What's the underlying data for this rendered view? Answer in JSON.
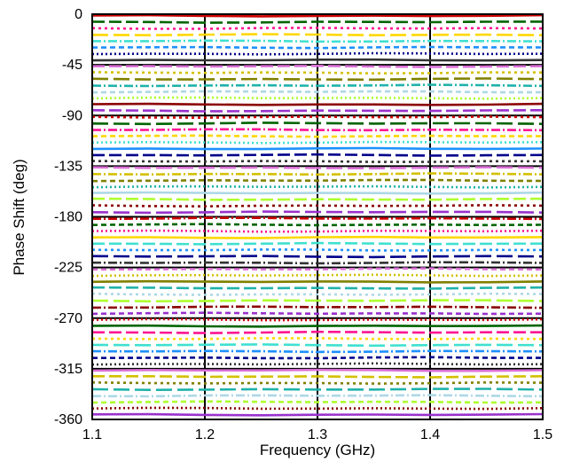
{
  "chart_data": {
    "type": "line",
    "title": "",
    "xlabel": "Frequency (GHz)",
    "ylabel": "Phase Shift (deg)",
    "xlim": [
      1.1,
      1.5
    ],
    "ylim": [
      -360,
      0
    ],
    "x_ticks": [
      1.1,
      1.2,
      1.3,
      1.4,
      1.5
    ],
    "y_ticks": [
      0,
      -45,
      -90,
      -135,
      -180,
      -225,
      -270,
      -315,
      -360
    ],
    "x_tick_labels": [
      "1.1",
      "1.2",
      "1.3",
      "1.4",
      "1.5"
    ],
    "y_tick_labels": [
      "0",
      "-45",
      "-90",
      "-135",
      "-180",
      "-225",
      "-270",
      "-315",
      "-360"
    ],
    "grid": true,
    "legend": "none",
    "x": [
      1.1,
      1.15,
      1.2,
      1.25,
      1.3,
      1.35,
      1.4,
      1.45,
      1.5
    ],
    "series_phase_deg": [
      -1.4,
      -7.0,
      -12.6,
      -18.3,
      -23.9,
      -29.5,
      -35.2,
      -40.8,
      -46.4,
      -52.0,
      -57.7,
      -63.3,
      -68.9,
      -74.5,
      -80.2,
      -85.8,
      -91.4,
      -97.0,
      -102.7,
      -108.3,
      -113.9,
      -119.5,
      -125.2,
      -130.8,
      -136.4,
      -142.0,
      -147.7,
      -153.3,
      -158.9,
      -164.5,
      -170.2,
      -175.8,
      -181.4,
      -187.0,
      -192.7,
      -198.3,
      -203.9,
      -209.5,
      -215.2,
      -220.8,
      -226.4,
      -232.0,
      -237.7,
      -243.3,
      -248.9,
      -254.5,
      -260.2,
      -265.8,
      -271.4,
      -277.0,
      -282.7,
      -288.3,
      -293.9,
      -299.5,
      -305.2,
      -310.8,
      -316.4,
      -322.0,
      -327.7,
      -333.3,
      -338.9,
      -344.5,
      -350.2,
      -355.8
    ],
    "series_count": 64,
    "colors": [
      "#cc0000",
      "#006400",
      "#ff1493",
      "#ffd700",
      "#40e0d0",
      "#1e90ff",
      "#00008b",
      "#333333",
      "#da70d6",
      "#d4c000",
      "#808000",
      "#20b2aa",
      "#add8e6",
      "#adff2f",
      "#8b0000",
      "#9932cc"
    ],
    "dash_patterns": [
      "",
      "14 5",
      "3 4",
      "18 6",
      "10 3 2 3",
      "6 4",
      "2 3"
    ]
  }
}
